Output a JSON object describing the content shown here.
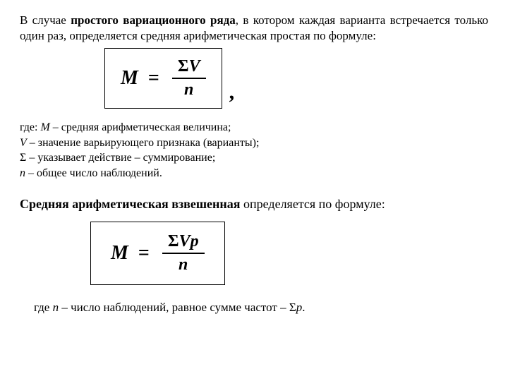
{
  "intro": {
    "pre": "В случае ",
    "bold": "простого вариационного ряда",
    "post": ", в котором каждая варианта встречается только один  раз, определяется средняя арифметическая простая по  формуле:"
  },
  "formula1": {
    "lhs": "M",
    "eq": "=",
    "sigma": "Σ",
    "numerator_var": "V",
    "denominator": "n",
    "comma": ","
  },
  "defs": {
    "l1_pre": "где: ",
    "l1_var": "М",
    "l1_post": "  – средняя арифметическая  величина;",
    "l2_var": "V",
    "l2_post": " – значение  варьирующего признака (варианты);",
    "l3_var": "Σ",
    "l3_post": " – указывает  действие – суммирование;",
    "l4_var": "n",
    "l4_post": " – общее  число наблюдений."
  },
  "section": {
    "bold": "Средняя арифметическая взвешенная",
    "post": " определяется по формуле:"
  },
  "formula2": {
    "lhs": "M",
    "eq": "=",
    "sigma": "Σ",
    "numerator_var1": "V",
    "numerator_var2": "p",
    "denominator": "n"
  },
  "final": {
    "pre": "где ",
    "var": "n",
    "mid": " – число наблюдений, равное сумме частот – Σ",
    "var2": "р",
    "post": "."
  },
  "style": {
    "bg": "#ffffff",
    "text": "#000000",
    "border": "#000000",
    "body_fontsize": 17,
    "formula_fontsize": 28,
    "def_fontsize": 16
  }
}
